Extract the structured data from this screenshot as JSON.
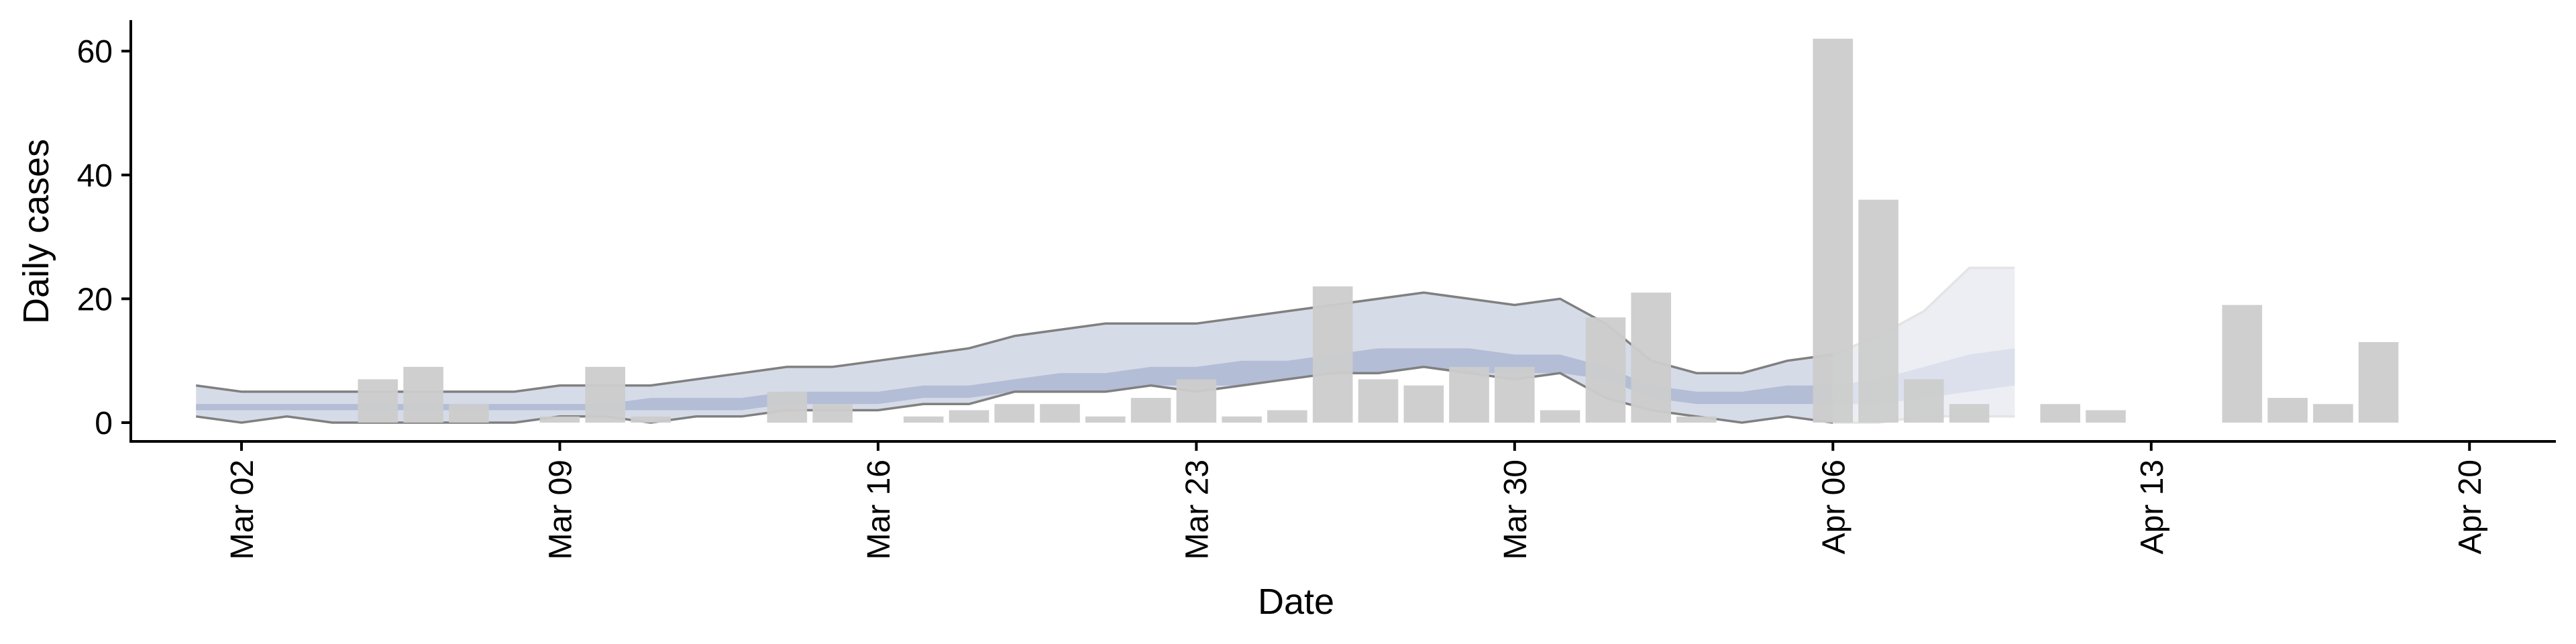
{
  "chart_data": {
    "type": "bar",
    "xlabel": "Date",
    "ylabel": "Daily cases",
    "ylim": [
      -3,
      65
    ],
    "yticks": [
      0,
      20,
      40,
      60
    ],
    "x_start": "2020-02-29",
    "xticks": [
      {
        "label": "Mar 02",
        "date": "2020-03-02"
      },
      {
        "label": "Mar 09",
        "date": "2020-03-09"
      },
      {
        "label": "Mar 16",
        "date": "2020-03-16"
      },
      {
        "label": "Mar 23",
        "date": "2020-03-23"
      },
      {
        "label": "Mar 30",
        "date": "2020-03-30"
      },
      {
        "label": "Apr 06",
        "date": "2020-04-06"
      },
      {
        "label": "Apr 13",
        "date": "2020-04-13"
      },
      {
        "label": "Apr 20",
        "date": "2020-04-20"
      }
    ],
    "bars": {
      "x": [
        "2020-03-05",
        "2020-03-06",
        "2020-03-07",
        "2020-03-09",
        "2020-03-10",
        "2020-03-11",
        "2020-03-14",
        "2020-03-15",
        "2020-03-17",
        "2020-03-18",
        "2020-03-19",
        "2020-03-20",
        "2020-03-21",
        "2020-03-22",
        "2020-03-23",
        "2020-03-24",
        "2020-03-25",
        "2020-03-26",
        "2020-03-27",
        "2020-03-28",
        "2020-03-29",
        "2020-03-30",
        "2020-03-31",
        "2020-04-01",
        "2020-04-02",
        "2020-04-03",
        "2020-04-06",
        "2020-04-07",
        "2020-04-08",
        "2020-04-09",
        "2020-04-11",
        "2020-04-12",
        "2020-04-15",
        "2020-04-16",
        "2020-04-17",
        "2020-04-18"
      ],
      "values": [
        7,
        9,
        3,
        1,
        9,
        1,
        5,
        3,
        1,
        2,
        3,
        3,
        1,
        4,
        7,
        1,
        2,
        22,
        7,
        6,
        9,
        9,
        2,
        17,
        21,
        1,
        62,
        36,
        7,
        3,
        3,
        2,
        19,
        4,
        3,
        13
      ],
      "color": "#cccccc"
    },
    "series": [
      {
        "type": "band",
        "x": [
          "2020-03-01",
          "2020-03-02",
          "2020-03-03",
          "2020-03-04",
          "2020-03-05",
          "2020-03-06",
          "2020-03-07",
          "2020-03-08",
          "2020-03-09",
          "2020-03-10",
          "2020-03-11",
          "2020-03-12",
          "2020-03-13",
          "2020-03-14",
          "2020-03-15",
          "2020-03-16",
          "2020-03-17",
          "2020-03-18",
          "2020-03-19",
          "2020-03-20",
          "2020-03-21",
          "2020-03-22",
          "2020-03-23",
          "2020-03-24",
          "2020-03-25",
          "2020-03-26",
          "2020-03-27",
          "2020-03-28",
          "2020-03-29",
          "2020-03-30",
          "2020-03-31",
          "2020-04-01",
          "2020-04-02",
          "2020-04-03",
          "2020-04-04",
          "2020-04-05",
          "2020-04-06"
        ],
        "upper": [
          6,
          5,
          5,
          5,
          5,
          5,
          5,
          5,
          6,
          6,
          6,
          7,
          8,
          9,
          9,
          10,
          11,
          12,
          14,
          15,
          16,
          16,
          16,
          17,
          18,
          19,
          20,
          21,
          20,
          19,
          20,
          16,
          10,
          8,
          8,
          10,
          11
        ],
        "lower": [
          1,
          0,
          1,
          0,
          0,
          0,
          0,
          0,
          1,
          1,
          0,
          1,
          1,
          2,
          2,
          2,
          3,
          3,
          5,
          5,
          5,
          6,
          5,
          6,
          7,
          8,
          8,
          9,
          8,
          7,
          8,
          4,
          2,
          1,
          0,
          1,
          0
        ],
        "inner_upper": [
          3,
          3,
          3,
          3,
          3,
          3,
          3,
          3,
          3,
          3,
          4,
          4,
          4,
          5,
          5,
          5,
          6,
          6,
          7,
          8,
          8,
          9,
          9,
          10,
          10,
          11,
          12,
          12,
          12,
          11,
          11,
          9,
          6,
          5,
          5,
          6,
          6
        ],
        "inner_lower": [
          2,
          2,
          2,
          2,
          2,
          2,
          2,
          2,
          2,
          2,
          2,
          2,
          2,
          3,
          3,
          3,
          4,
          4,
          5,
          5,
          5,
          6,
          6,
          6,
          7,
          8,
          8,
          9,
          8,
          8,
          8,
          7,
          4,
          3,
          3,
          3,
          3
        ],
        "outer_color": "#d6dbe8",
        "inner_color": "#b3bdd6",
        "edge_color": "#808080"
      },
      {
        "type": "band",
        "x": [
          "2020-04-06",
          "2020-04-07",
          "2020-04-08",
          "2020-04-09",
          "2020-04-10"
        ],
        "upper": [
          11,
          14,
          18,
          25,
          25
        ],
        "lower": [
          0,
          0,
          1,
          1,
          1
        ],
        "inner_upper": [
          6,
          7,
          9,
          11,
          12
        ],
        "inner_lower": [
          3,
          3,
          4,
          5,
          6
        ],
        "outer_color": "#eceef4",
        "inner_color": "#dbe0ec",
        "edge_color": "#e4e4e4"
      }
    ]
  }
}
